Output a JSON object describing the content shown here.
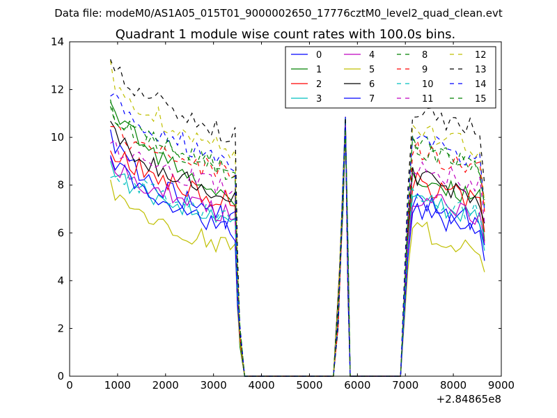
{
  "supertitle": "Data file: modeM0/AS1A05_015T01_9000002650_17776cztM0_level2_quad_clean.evt",
  "chart_data": {
    "type": "line",
    "title": "Quadrant 1 module wise count rates with 100.0s bins.",
    "xlabel": "",
    "ylabel": "",
    "x_offset_label": "+2.84865e8",
    "xlim": [
      0,
      9000
    ],
    "ylim": [
      0,
      14
    ],
    "xticks": [
      0,
      1000,
      2000,
      3000,
      4000,
      5000,
      6000,
      7000,
      8000,
      9000
    ],
    "yticks": [
      0,
      2,
      4,
      6,
      8,
      10,
      12,
      14
    ],
    "grid": false,
    "legend_position": "top-right",
    "legend_columns": 4,
    "x_gaps": [
      [
        3700,
        5500
      ],
      [
        5900,
        6950
      ]
    ],
    "series": [
      {
        "name": "0",
        "color": "#0000ff",
        "dash": "solid",
        "base": 10.0,
        "end": 6.8,
        "seed": 1
      },
      {
        "name": "1",
        "color": "#008000",
        "dash": "solid",
        "base": 11.5,
        "end": 7.8,
        "seed": 2
      },
      {
        "name": "2",
        "color": "#ff0000",
        "dash": "solid",
        "base": 9.8,
        "end": 7.6,
        "seed": 3
      },
      {
        "name": "3",
        "color": "#00bfbf",
        "dash": "solid",
        "base": 8.8,
        "end": 6.9,
        "seed": 4
      },
      {
        "name": "4",
        "color": "#bf00bf",
        "dash": "solid",
        "base": 9.3,
        "end": 7.0,
        "seed": 5
      },
      {
        "name": "5",
        "color": "#bfbf00",
        "dash": "solid",
        "base": 7.8,
        "end": 5.7,
        "seed": 6
      },
      {
        "name": "6",
        "color": "#000000",
        "dash": "solid",
        "base": 10.6,
        "end": 7.8,
        "seed": 7
      },
      {
        "name": "7",
        "color": "#0000ff",
        "dash": "solid",
        "base": 9.5,
        "end": 6.4,
        "seed": 8
      },
      {
        "name": "8",
        "color": "#008000",
        "dash": "dashed",
        "base": 11.0,
        "end": 9.2,
        "seed": 9
      },
      {
        "name": "9",
        "color": "#ff0000",
        "dash": "dashed",
        "base": 10.5,
        "end": 8.9,
        "seed": 10
      },
      {
        "name": "10",
        "color": "#00bfbf",
        "dash": "dashed",
        "base": 8.7,
        "end": 7.1,
        "seed": 11
      },
      {
        "name": "11",
        "color": "#bf00bf",
        "dash": "dashed",
        "base": 9.9,
        "end": 8.3,
        "seed": 12
      },
      {
        "name": "12",
        "color": "#bfbf00",
        "dash": "dashed",
        "base": 12.8,
        "end": 9.8,
        "seed": 13
      },
      {
        "name": "13",
        "color": "#000000",
        "dash": "dashed",
        "base": 13.2,
        "end": 10.6,
        "seed": 14
      },
      {
        "name": "14",
        "color": "#0000ff",
        "dash": "dashed",
        "base": 12.0,
        "end": 9.4,
        "seed": 15
      },
      {
        "name": "15",
        "color": "#008000",
        "dash": "dashed",
        "base": 11.3,
        "end": 9.0,
        "seed": 16
      }
    ]
  }
}
